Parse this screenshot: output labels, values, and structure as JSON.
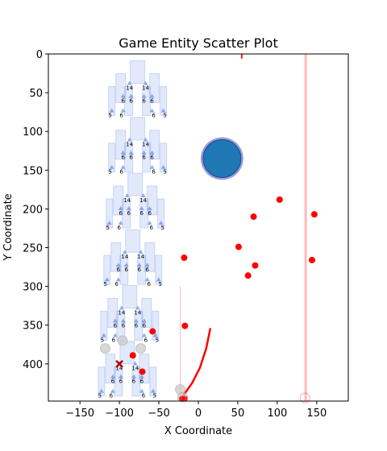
{
  "chart_data": {
    "type": "scatter",
    "title": "Game Entity Scatter Plot",
    "xlabel": "X Coordinate",
    "ylabel": "Y Coordinate",
    "xlim": [
      -190,
      190
    ],
    "ylim": [
      448,
      0
    ],
    "y_inverted": true,
    "x_ticks": [
      -150,
      -100,
      -50,
      0,
      50,
      100,
      150
    ],
    "x_tick_labels": [
      "−150",
      "−100",
      "−50",
      "0",
      "50",
      "100",
      "150"
    ],
    "y_ticks": [
      0,
      50,
      100,
      150,
      200,
      250,
      300,
      350,
      400
    ],
    "y_tick_labels": [
      "0",
      "50",
      "100",
      "150",
      "200",
      "250",
      "300",
      "350",
      "400"
    ],
    "grid": false,
    "legend": "none",
    "colors": {
      "enemy": "#ff0000",
      "player_fill": "#1f77b4",
      "player_ring": "#8a8ae0",
      "pyramid": "#4878e8",
      "marker_x": "#b00000",
      "ghost": "#c8c8c8"
    },
    "enemies": [
      {
        "x": 103,
        "y": 188
      },
      {
        "x": 147,
        "y": 207
      },
      {
        "x": 70,
        "y": 210
      },
      {
        "x": 51,
        "y": 249
      },
      {
        "x": -18,
        "y": 263
      },
      {
        "x": 144,
        "y": 266
      },
      {
        "x": 72,
        "y": 273
      },
      {
        "x": 63,
        "y": 286
      },
      {
        "x": -17,
        "y": 351
      },
      {
        "x": -58,
        "y": 358
      },
      {
        "x": -83,
        "y": 389
      },
      {
        "x": -71,
        "y": 410
      }
    ],
    "player": {
      "x": 30,
      "y": 135,
      "outer_radius": 27,
      "inner_radius": 24
    },
    "cross_marker": {
      "x": -100,
      "y": 400
    },
    "ghost_points": [
      {
        "x": -118,
        "y": 380
      },
      {
        "x": -96,
        "y": 370
      },
      {
        "x": -73,
        "y": 380
      },
      {
        "x": -23,
        "y": 433
      },
      {
        "x": -20,
        "y": 443
      },
      {
        "x": 135,
        "y": 444
      }
    ],
    "trajectory": {
      "points": [
        {
          "x": 15,
          "y": 355
        },
        {
          "x": 10,
          "y": 380
        },
        {
          "x": 2,
          "y": 405
        },
        {
          "x": -8,
          "y": 425
        },
        {
          "x": -22,
          "y": 445
        }
      ]
    },
    "vertical_lines": [
      {
        "x": 55,
        "y_from": 0,
        "y_to": 6
      },
      {
        "x": 136,
        "y_from": 0,
        "y_to": 448
      },
      {
        "x": -23,
        "y_from": 300,
        "y_to": 448
      }
    ],
    "pyramids": [
      {
        "x": -77,
        "y": 40,
        "labels": [
          "14",
          "6",
          "5"
        ]
      },
      {
        "x": -77,
        "y": 113,
        "labels": [
          "14",
          "6",
          "5"
        ]
      },
      {
        "x": -80,
        "y": 185,
        "labels": [
          "14",
          "6",
          "5"
        ]
      },
      {
        "x": -83,
        "y": 258,
        "labels": [
          "14",
          "6",
          "5"
        ]
      },
      {
        "x": -87,
        "y": 330,
        "labels": [
          "14",
          "6",
          "5"
        ]
      },
      {
        "x": -90,
        "y": 402,
        "labels": [
          "14",
          "6",
          "5"
        ]
      }
    ]
  }
}
